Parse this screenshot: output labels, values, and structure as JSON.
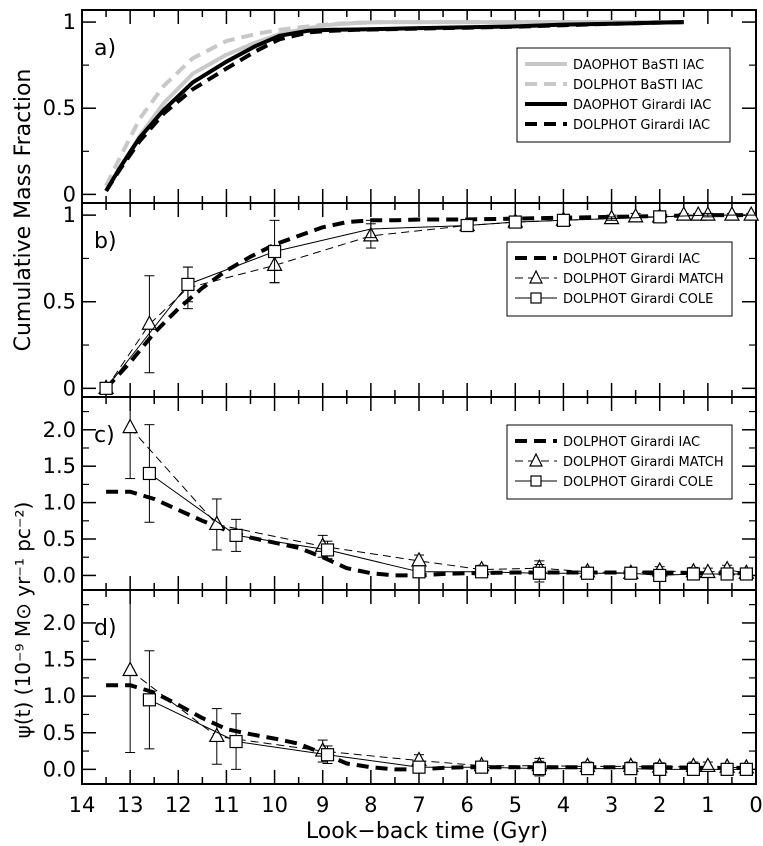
{
  "figure": {
    "xlabel": "Look−back time (Gyr)",
    "ylabel_top": "Cumulative Mass Fraction",
    "ylabel_bottom": "ψ(t) (10⁻⁹ M⊙ yr⁻¹ pc⁻²)"
  },
  "chart_data": [
    {
      "type": "line",
      "panel_label": "a)",
      "xlim": [
        14,
        0
      ],
      "ylim": [
        -0.05,
        1.07
      ],
      "x_ticks": [
        14,
        13,
        12,
        11,
        10,
        9,
        8,
        7,
        6,
        5,
        4,
        3,
        2,
        1,
        0
      ],
      "y_ticks": [
        0,
        0.5,
        1
      ],
      "y_tick_labels": [
        "0",
        "0.5",
        "1"
      ],
      "legend_position": "right",
      "series": [
        {
          "name": "DAOPHOT BaSTI IAC",
          "style": "solid",
          "color": "#c8c8c8",
          "width": 4,
          "x": [
            13.5,
            13.2,
            12.8,
            12.3,
            11.7,
            11.0,
            10.4,
            9.9,
            9.3,
            8.8,
            8.3,
            7.8,
            7.0,
            6.0,
            5.0,
            4.0,
            3.0,
            2.0,
            1.5
          ],
          "y": [
            0.02,
            0.16,
            0.34,
            0.53,
            0.7,
            0.81,
            0.88,
            0.93,
            0.965,
            0.985,
            0.995,
            1.0,
            1.0,
            1.0,
            1.0,
            1.0,
            1.0,
            1.0,
            1.0
          ]
        },
        {
          "name": "DOLPHOT BaSTI IAC",
          "style": "dashed",
          "color": "#c8c8c8",
          "width": 4,
          "x": [
            13.5,
            13.2,
            12.8,
            12.3,
            11.7,
            11.0,
            10.4,
            9.9,
            9.3,
            8.8,
            8.3,
            7.8,
            7.0,
            6.0,
            5.0,
            4.0,
            3.0,
            2.0,
            1.5
          ],
          "y": [
            0.05,
            0.22,
            0.44,
            0.63,
            0.79,
            0.89,
            0.93,
            0.955,
            0.975,
            0.99,
            0.995,
            1.0,
            1.0,
            1.0,
            1.0,
            1.0,
            1.0,
            1.0,
            1.0
          ]
        },
        {
          "name": "DAOPHOT Girardi IAC",
          "style": "solid",
          "color": "#000000",
          "width": 4,
          "x": [
            13.5,
            13.2,
            12.8,
            12.3,
            11.7,
            11.0,
            10.4,
            9.9,
            9.3,
            8.8,
            8.3,
            7.8,
            7.0,
            6.0,
            5.0,
            4.0,
            3.0,
            2.0,
            1.5
          ],
          "y": [
            0.02,
            0.16,
            0.33,
            0.49,
            0.65,
            0.77,
            0.86,
            0.92,
            0.95,
            0.955,
            0.957,
            0.96,
            0.965,
            0.97,
            0.975,
            0.985,
            0.99,
            0.997,
            1.0
          ]
        },
        {
          "name": "DOLPHOT Girardi IAC",
          "style": "dashed",
          "color": "#000000",
          "width": 4,
          "x": [
            13.5,
            13.2,
            12.8,
            12.3,
            11.7,
            11.0,
            10.4,
            9.9,
            9.3,
            8.8,
            8.3,
            7.8,
            7.0,
            6.0,
            5.0,
            4.0,
            3.0,
            2.0,
            1.5
          ],
          "y": [
            0.02,
            0.15,
            0.31,
            0.47,
            0.61,
            0.73,
            0.83,
            0.9,
            0.94,
            0.95,
            0.955,
            0.958,
            0.962,
            0.967,
            0.973,
            0.982,
            0.99,
            0.997,
            1.0
          ]
        }
      ]
    },
    {
      "type": "line",
      "panel_label": "b)",
      "xlim": [
        14,
        0
      ],
      "ylim": [
        -0.05,
        1.07
      ],
      "x_ticks": [
        14,
        13,
        12,
        11,
        10,
        9,
        8,
        7,
        6,
        5,
        4,
        3,
        2,
        1,
        0
      ],
      "y_ticks": [
        0,
        0.5,
        1
      ],
      "y_tick_labels": [
        "0",
        "0.5",
        "1"
      ],
      "legend_position": "right",
      "series": [
        {
          "name": "DOLPHOT Girardi IAC",
          "style": "dashed",
          "color": "#000000",
          "width": 4,
          "marker": "none",
          "x": [
            13.5,
            13.0,
            12.5,
            12.0,
            11.5,
            11.0,
            10.5,
            10.0,
            9.5,
            9.0,
            8.5,
            8.0,
            7.5,
            7.0,
            6.0,
            5.0,
            4.0,
            3.0,
            2.0,
            1.0,
            0.0
          ],
          "y": [
            0.0,
            0.15,
            0.32,
            0.46,
            0.58,
            0.68,
            0.76,
            0.83,
            0.88,
            0.93,
            0.96,
            0.97,
            0.97,
            0.975,
            0.975,
            0.98,
            0.985,
            0.99,
            0.995,
            1.0,
            1.0
          ]
        },
        {
          "name": "DOLPHOT Girardi MATCH",
          "style": "dashed-thin",
          "color": "#000000",
          "width": 1,
          "marker": "triangle",
          "x": [
            13.5,
            12.6,
            11.8,
            10.0,
            8.0,
            6.0,
            5.0,
            4.0,
            3.0,
            2.5,
            2.0,
            1.5,
            1.2,
            1.0,
            0.5,
            0.1
          ],
          "y": [
            0.0,
            0.37,
            0.58,
            0.71,
            0.88,
            0.94,
            0.96,
            0.97,
            0.98,
            0.99,
            0.99,
            1.0,
            1.0,
            1.0,
            1.0,
            1.0
          ],
          "err": [
            0.0,
            0.28,
            0.12,
            0.1,
            0.07,
            0.03,
            0.03,
            0.02,
            0.02,
            0.02,
            0.02,
            0.01,
            0.01,
            0.01,
            0.01,
            0.01
          ],
          "markers_at": [
            13.5,
            12.6,
            10.0,
            8.0,
            6.0,
            5.0,
            4.0,
            3.0,
            2.5,
            2.0,
            1.5,
            1.2,
            1.0,
            0.5,
            0.1
          ]
        },
        {
          "name": "DOLPHOT Girardi COLE",
          "style": "solid-thin",
          "color": "#000000",
          "width": 1,
          "marker": "square",
          "x": [
            13.5,
            11.8,
            10.0,
            8.0,
            6.0,
            5.0,
            4.0,
            3.0,
            2.0,
            1.0,
            0.0
          ],
          "y": [
            0.0,
            0.6,
            0.79,
            0.92,
            0.94,
            0.96,
            0.97,
            0.98,
            0.99,
            1.0,
            1.0
          ],
          "err": [
            0.0,
            0.1,
            0.18,
            0.05,
            0.02,
            0.02,
            0.02,
            0.01,
            0.01,
            0.01,
            0.0
          ],
          "markers_at": [
            13.5,
            11.8,
            10.0,
            6.0,
            5.0,
            4.0,
            2.0
          ]
        }
      ]
    },
    {
      "type": "line",
      "panel_label": "c)",
      "xlim": [
        14,
        0
      ],
      "ylim": [
        -0.2,
        2.45
      ],
      "x_ticks": [
        14,
        13,
        12,
        11,
        10,
        9,
        8,
        7,
        6,
        5,
        4,
        3,
        2,
        1,
        0
      ],
      "y_ticks": [
        0,
        0.5,
        1,
        1.5,
        2
      ],
      "y_tick_labels": [
        "0.0",
        "0.5",
        "1.0",
        "1.5",
        "2.0"
      ],
      "legend_position": "right",
      "series": [
        {
          "name": "DOLPHOT Girardi IAC",
          "style": "dashed",
          "color": "#000000",
          "width": 4,
          "marker": "none",
          "x": [
            13.5,
            13.0,
            12.5,
            12.0,
            11.5,
            11.0,
            10.5,
            10.0,
            9.5,
            9.0,
            8.5,
            8.0,
            7.5,
            7.0,
            6.5,
            6.0,
            5.0,
            4.0,
            3.0,
            2.0,
            1.0,
            0.0
          ],
          "y": [
            1.15,
            1.15,
            1.05,
            0.9,
            0.75,
            0.62,
            0.52,
            0.45,
            0.38,
            0.25,
            0.1,
            0.03,
            0.0,
            0.0,
            0.02,
            0.03,
            0.04,
            0.04,
            0.04,
            0.04,
            0.03,
            0.03
          ]
        },
        {
          "name": "DOLPHOT Girardi MATCH",
          "style": "dashed-thin",
          "color": "#000000",
          "width": 1,
          "marker": "triangle",
          "x": [
            13.0,
            11.2,
            9.0,
            7.0,
            5.7,
            4.5,
            3.5,
            2.6,
            2.0,
            1.3,
            1.0,
            0.6,
            0.2
          ],
          "y": [
            2.03,
            0.7,
            0.4,
            0.2,
            0.08,
            0.1,
            0.05,
            0.03,
            0.06,
            0.05,
            0.04,
            0.08,
            0.03
          ],
          "err": [
            0.7,
            0.35,
            0.15,
            0.08,
            0.06,
            0.1,
            0.06,
            0.06,
            0.06,
            0.06,
            0.06,
            0.06,
            0.05
          ],
          "markers_at": [
            13.0,
            11.2,
            9.0,
            7.0,
            5.7,
            4.5,
            3.5,
            2.6,
            2.0,
            1.3,
            1.0,
            0.6,
            0.2
          ]
        },
        {
          "name": "DOLPHOT Girardi COLE",
          "style": "solid-thin",
          "color": "#000000",
          "width": 1,
          "marker": "square",
          "x": [
            12.6,
            10.8,
            8.9,
            7.0,
            5.7,
            4.5,
            3.5,
            2.6,
            2.0,
            1.3,
            0.6,
            0.2
          ],
          "y": [
            1.4,
            0.55,
            0.35,
            0.05,
            0.05,
            0.03,
            0.03,
            0.03,
            0.0,
            0.02,
            0.02,
            0.02
          ],
          "err": [
            0.67,
            0.22,
            0.12,
            0.08,
            0.06,
            0.12,
            0.06,
            0.06,
            0.06,
            0.06,
            0.05,
            0.05
          ],
          "markers_at": [
            12.6,
            10.8,
            8.9,
            7.0,
            5.7,
            4.5,
            3.5,
            2.6,
            2.0,
            1.3,
            0.6,
            0.2
          ]
        }
      ]
    },
    {
      "type": "line",
      "panel_label": "d)",
      "xlim": [
        14,
        0
      ],
      "ylim": [
        -0.2,
        2.45
      ],
      "x_ticks": [
        14,
        13,
        12,
        11,
        10,
        9,
        8,
        7,
        6,
        5,
        4,
        3,
        2,
        1,
        0
      ],
      "y_ticks": [
        0,
        0.5,
        1,
        1.5,
        2
      ],
      "y_tick_labels": [
        "0.0",
        "0.5",
        "1.0",
        "1.5",
        "2.0"
      ],
      "legend_position": "none",
      "series": [
        {
          "name": "DOLPHOT Girardi IAC",
          "style": "dashed",
          "color": "#000000",
          "width": 4,
          "marker": "none",
          "x": [
            13.5,
            13.0,
            12.5,
            12.0,
            11.5,
            11.0,
            10.5,
            10.0,
            9.5,
            9.0,
            8.5,
            8.0,
            7.5,
            7.0,
            6.5,
            6.0,
            5.0,
            4.0,
            3.0,
            2.0,
            1.0,
            0.0
          ],
          "y": [
            1.15,
            1.15,
            1.05,
            0.88,
            0.7,
            0.55,
            0.48,
            0.42,
            0.35,
            0.22,
            0.08,
            0.03,
            0.0,
            0.0,
            0.02,
            0.03,
            0.03,
            0.03,
            0.03,
            0.03,
            0.02,
            0.02
          ]
        },
        {
          "name": "DOLPHOT Girardi MATCH",
          "style": "dashed-thin",
          "color": "#000000",
          "width": 1,
          "marker": "triangle",
          "x": [
            13.0,
            11.2,
            9.0,
            7.0,
            5.7,
            4.5,
            3.5,
            2.6,
            2.0,
            1.3,
            1.0,
            0.6,
            0.2
          ],
          "y": [
            1.35,
            0.45,
            0.25,
            0.12,
            0.05,
            0.05,
            0.04,
            0.04,
            0.03,
            0.04,
            0.04,
            0.03,
            0.02
          ],
          "err": [
            1.12,
            0.38,
            0.15,
            0.08,
            0.06,
            0.1,
            0.06,
            0.06,
            0.06,
            0.06,
            0.06,
            0.05,
            0.05
          ],
          "markers_at": [
            13.0,
            11.2,
            9.0,
            7.0,
            5.7,
            4.5,
            3.5,
            2.6,
            2.0,
            1.3,
            1.0,
            0.6,
            0.2
          ]
        },
        {
          "name": "DOLPHOT Girardi COLE",
          "style": "solid-thin",
          "color": "#000000",
          "width": 1,
          "marker": "square",
          "x": [
            12.6,
            10.8,
            8.9,
            7.0,
            5.7,
            4.5,
            3.5,
            2.6,
            2.0,
            1.3,
            0.6,
            0.2
          ],
          "y": [
            0.95,
            0.38,
            0.2,
            0.03,
            0.03,
            0.01,
            0.01,
            0.01,
            0.0,
            0.0,
            0.0,
            0.0
          ],
          "err": [
            0.67,
            0.38,
            0.12,
            0.06,
            0.05,
            0.1,
            0.05,
            0.05,
            0.05,
            0.05,
            0.05,
            0.05
          ],
          "markers_at": [
            12.6,
            10.8,
            8.9,
            7.0,
            5.7,
            4.5,
            3.5,
            2.6,
            2.0,
            1.3,
            0.6,
            0.2
          ]
        }
      ]
    }
  ]
}
